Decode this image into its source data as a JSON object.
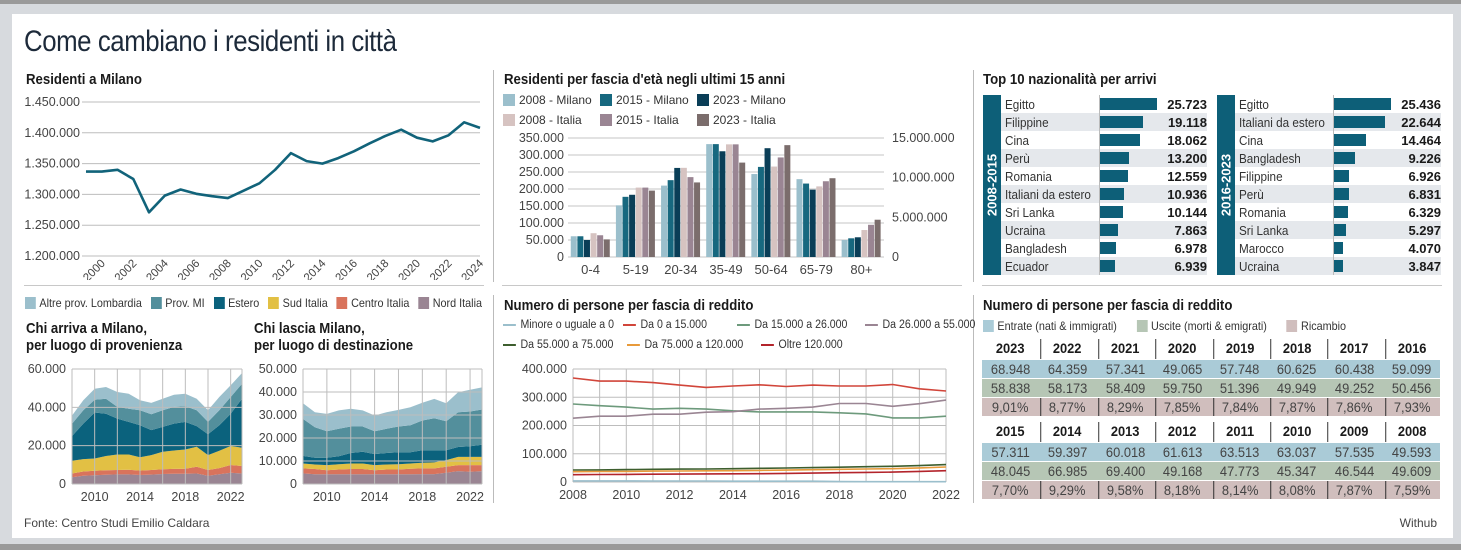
{
  "title": "Come cambiano i residenti in città",
  "source": "Fonte: Centro Studi Emilio Caldara",
  "credit": "Withub",
  "colors": {
    "teal": "#0d5f78",
    "milano2008": "#9bbfcc",
    "milano2015": "#17687f",
    "milano2023": "#0a3e57",
    "italia2008": "#d6c3c1",
    "italia2015": "#9a8593",
    "italia2023": "#7b6d6c",
    "altre_lombardia": "#9bbfcc",
    "prov_mi": "#538f9c",
    "estero": "#0b627d",
    "sud": "#e2c044",
    "centro": "#d9735c",
    "nord": "#9a8593"
  },
  "chart_data": [
    {
      "id": "residenti",
      "type": "line",
      "title": "Residenti a Milano",
      "xlabel": "",
      "ylabel": "",
      "x": [
        1999,
        2000,
        2001,
        2002,
        2003,
        2004,
        2005,
        2006,
        2007,
        2008,
        2009,
        2010,
        2011,
        2012,
        2013,
        2014,
        2015,
        2016,
        2017,
        2018,
        2019,
        2020,
        2021,
        2022,
        2023,
        2024
      ],
      "values": [
        1337000,
        1337000,
        1340000,
        1325000,
        1271000,
        1298000,
        1308000,
        1301000,
        1297000,
        1294000,
        1306000,
        1318000,
        1340000,
        1367000,
        1354000,
        1350000,
        1359000,
        1370000,
        1383000,
        1395000,
        1405000,
        1392000,
        1386000,
        1396000,
        1417000,
        1408000
      ],
      "xticks": [
        "2000",
        "2002",
        "2004",
        "2006",
        "2008",
        "2010",
        "2012",
        "2014",
        "2016",
        "2018",
        "2020",
        "2022",
        "2024"
      ],
      "yticks": [
        "1.200.000",
        "1.250.000",
        "1.300.000",
        "1.350.000",
        "1.400.000",
        "1.450.000"
      ],
      "ylim": [
        1200000,
        1450000
      ],
      "grid": true
    },
    {
      "id": "eta",
      "type": "bar",
      "title": "Residenti per fascia d'età negli ultimi 15 anni",
      "categories": [
        "0-4",
        "5-19",
        "20-34",
        "35-49",
        "50-64",
        "65-79",
        "80+"
      ],
      "series": [
        {
          "name": "2008 - Milano",
          "axis": "left",
          "color_key": "milano2008",
          "values": [
            61000,
            152000,
            210000,
            332000,
            244000,
            229000,
            50000
          ]
        },
        {
          "name": "2015 - Milano",
          "axis": "left",
          "color_key": "milano2015",
          "values": [
            61000,
            177000,
            226000,
            332000,
            265000,
            216000,
            55000
          ]
        },
        {
          "name": "2023 - Milano",
          "axis": "left",
          "color_key": "milano2023",
          "values": [
            50000,
            183000,
            262000,
            311000,
            320000,
            198000,
            58000
          ]
        },
        {
          "name": "2008 - Italia",
          "axis": "right",
          "color_key": "italia2008",
          "values": [
            3000000,
            8750000,
            11240000,
            14200000,
            11400000,
            8900000,
            3400000
          ]
        },
        {
          "name": "2015 - Italia",
          "axis": "right",
          "color_key": "italia2015",
          "values": [
            2740000,
            8750000,
            10070000,
            14200000,
            12550000,
            9550000,
            4060000
          ]
        },
        {
          "name": "2023 - Italia",
          "axis": "right",
          "color_key": "italia2023",
          "values": [
            2220000,
            8370000,
            9400000,
            11900000,
            14100000,
            9930000,
            4700000
          ]
        }
      ],
      "legend_order": [
        0,
        1,
        2,
        3,
        4,
        5
      ],
      "yticks_left": [
        "0",
        "50.000",
        "100.000",
        "150.000",
        "200.000",
        "250.000",
        "300.000",
        "350.000"
      ],
      "yticks_right": [
        "0",
        "5.000.000",
        "10.000.000",
        "15.000.000"
      ],
      "ylim_left": [
        0,
        350000
      ],
      "ylim_right": [
        0,
        15000000
      ],
      "grid": true
    },
    {
      "id": "arrivi",
      "type": "area",
      "title": "Chi arriva a Milano, per luogo di provenienza",
      "title_lines": [
        "Chi arriva a Milano,",
        "per luogo di provenienza"
      ],
      "x": [
        2008,
        2009,
        2010,
        2011,
        2012,
        2013,
        2014,
        2015,
        2016,
        2017,
        2018,
        2019,
        2020,
        2021,
        2022,
        2023
      ],
      "series": [
        {
          "name": "Nord Italia",
          "color_key": "nord",
          "values": [
            3500,
            4300,
            4600,
            4800,
            5000,
            5000,
            4700,
            4900,
            5200,
            5300,
            5300,
            5500,
            4300,
            5100,
            5900,
            5500
          ]
        },
        {
          "name": "Centro Italia",
          "color_key": "centro",
          "values": [
            2000,
            2200,
            2300,
            2400,
            2300,
            2400,
            2300,
            2400,
            2500,
            2600,
            2700,
            3500,
            3000,
            3200,
            4000,
            3900
          ]
        },
        {
          "name": "Sud Italia",
          "color_key": "sud",
          "values": [
            6600,
            6500,
            6400,
            7400,
            8100,
            8000,
            7000,
            7800,
            9100,
            9600,
            10000,
            10400,
            7800,
            9000,
            9900,
            9500
          ]
        },
        {
          "name": "Estero",
          "color_key": "estero",
          "values": [
            12900,
            18500,
            24000,
            22100,
            18700,
            17000,
            16700,
            13000,
            13000,
            14000,
            14400,
            10800,
            10900,
            13400,
            16900,
            25600
          ]
        },
        {
          "name": "Prov. MI",
          "color_key": "prov_mi",
          "values": [
            6400,
            7000,
            6700,
            7800,
            6100,
            6900,
            7800,
            8300,
            8700,
            8700,
            8200,
            8300,
            6400,
            7800,
            8700,
            7800
          ]
        },
        {
          "name": "Altre prov. Lombardia",
          "color_key": "altre_lombardia",
          "values": [
            4300,
            5200,
            5700,
            6100,
            7800,
            7800,
            5200,
            5900,
            6000,
            6400,
            6500,
            6000,
            6100,
            6900,
            6100,
            5600
          ]
        }
      ],
      "xticks": [
        "2010",
        "2014",
        "2018",
        "2022"
      ],
      "yticks": [
        "0",
        "20.000",
        "40.000",
        "60.000"
      ],
      "ylim": [
        0,
        60000
      ],
      "grid": true
    },
    {
      "id": "partenze",
      "type": "area",
      "title": "Chi lascia Milano, per luogo di destinazione",
      "title_lines": [
        "Chi lascia Milano,",
        "per luogo di destinazione"
      ],
      "x": [
        2008,
        2009,
        2010,
        2011,
        2012,
        2013,
        2014,
        2015,
        2016,
        2017,
        2018,
        2019,
        2020,
        2021,
        2022,
        2023
      ],
      "series": [
        {
          "name": "Nord Italia",
          "color_key": "nord",
          "values": [
            4600,
            4200,
            4200,
            4200,
            4200,
            4200,
            4200,
            4200,
            4200,
            4200,
            4300,
            4300,
            4900,
            5600,
            5300,
            5600
          ]
        },
        {
          "name": "Centro Italia",
          "color_key": "centro",
          "values": [
            2200,
            2300,
            1800,
            2100,
            2300,
            2300,
            1800,
            2100,
            2100,
            2400,
            2500,
            2500,
            2600,
            2600,
            2900,
            2600
          ]
        },
        {
          "name": "Sud Italia",
          "color_key": "sud",
          "values": [
            2100,
            2000,
            2200,
            2300,
            2400,
            2400,
            2200,
            2200,
            2300,
            2300,
            2400,
            2600,
            2900,
            3600,
            3600,
            3600
          ]
        },
        {
          "name": "Estero",
          "color_key": "estero",
          "values": [
            3300,
            2900,
            3200,
            3500,
            4600,
            5100,
            4800,
            5000,
            5200,
            4900,
            5500,
            5300,
            4300,
            4300,
            4600,
            5300
          ]
        },
        {
          "name": "Prov. MI",
          "color_key": "prov_mi",
          "values": [
            16100,
            13300,
            11500,
            11900,
            11500,
            11000,
            9900,
            10500,
            11200,
            11700,
            12900,
            13900,
            12600,
            15100,
            15100,
            15300
          ]
        },
        {
          "name": "Altre prov. Lombardia",
          "color_key": "altre_lombardia",
          "values": [
            6800,
            6500,
            7600,
            8000,
            7700,
            7000,
            6900,
            7200,
            7200,
            7900,
            7700,
            8400,
            7800,
            8700,
            9500,
            9600
          ]
        }
      ],
      "xticks": [
        "2010",
        "2014",
        "2018",
        "2022"
      ],
      "yticks": [
        "0",
        "10.000",
        "20.000",
        "30.000",
        "40.000",
        "50.000"
      ],
      "ylim": [
        0,
        50000
      ],
      "grid": true
    },
    {
      "id": "reddito",
      "type": "line",
      "title": "Numero di persone per fascia di reddito",
      "x": [
        2008,
        2009,
        2010,
        2011,
        2012,
        2013,
        2014,
        2015,
        2016,
        2017,
        2018,
        2019,
        2020,
        2021,
        2022
      ],
      "series": [
        {
          "name": "Minore o uguale a 0",
          "color": "#9bbfcc",
          "values": [
            4000,
            4000,
            4000,
            3500,
            3500,
            3500,
            3000,
            3000,
            3000,
            3000,
            1500,
            1000,
            1000,
            1000,
            1000
          ]
        },
        {
          "name": "Da 0 a 15.000",
          "color": "#d1453a",
          "values": [
            368000,
            357000,
            357000,
            352000,
            343000,
            335000,
            340000,
            344000,
            338000,
            343000,
            340000,
            340000,
            345000,
            330000,
            322000
          ]
        },
        {
          "name": "Da 15.000 a 26.000",
          "color": "#6d9a7c",
          "values": [
            276000,
            270000,
            265000,
            258000,
            261000,
            258000,
            252000,
            248000,
            248000,
            248000,
            245000,
            241000,
            227000,
            227000,
            233000
          ]
        },
        {
          "name": "Da 26.000 a 55.000",
          "color": "#9a8593",
          "values": [
            226000,
            233000,
            233000,
            240000,
            240000,
            247000,
            249000,
            258000,
            261000,
            265000,
            278000,
            278000,
            268000,
            277000,
            290000
          ]
        },
        {
          "name": "Da 55.000 a 75.000",
          "color": "#3d5e2e",
          "values": [
            42500,
            43000,
            44000,
            45000,
            45500,
            46000,
            47000,
            48500,
            49500,
            51000,
            52500,
            54000,
            55500,
            58000,
            61500
          ]
        },
        {
          "name": "Da 75.000 a 120.000",
          "color": "#e89a3a",
          "values": [
            36500,
            37000,
            37500,
            38500,
            39000,
            39500,
            40000,
            41000,
            42000,
            43500,
            45000,
            46000,
            47000,
            50000,
            53000
          ]
        },
        {
          "name": "Oltre 120.000",
          "color": "#b3242b",
          "values": [
            26000,
            26500,
            27000,
            27500,
            28000,
            28500,
            29000,
            29500,
            30500,
            31500,
            33000,
            34000,
            35000,
            37500,
            40000
          ]
        }
      ],
      "xticks": [
        "2008",
        "2010",
        "2012",
        "2014",
        "2016",
        "2018",
        "2020",
        "2022"
      ],
      "yticks": [
        "0",
        "100.000",
        "200.000",
        "300.000",
        "400.000"
      ],
      "ylim": [
        0,
        400000
      ],
      "grid": true
    },
    {
      "id": "top10",
      "type": "bar",
      "title": "Top 10 nazionalità per arrivi",
      "panels": [
        {
          "period": "2008-2015",
          "categories": [
            "Egitto",
            "Filippine",
            "Cina",
            "Perù",
            "Romania",
            "Italiani da estero",
            "Sri Lanka",
            "Ucraina",
            "Bangladesh",
            "Ecuador"
          ],
          "values": [
            25723,
            19118,
            18062,
            13200,
            12559,
            10936,
            10144,
            7863,
            6978,
            6939
          ],
          "labels": [
            "25.723",
            "19.118",
            "18.062",
            "13.200",
            "12.559",
            "10.936",
            "10.144",
            "7.863",
            "6.978",
            "6.939"
          ]
        },
        {
          "period": "2016-2023",
          "categories": [
            "Egitto",
            "Italiani da estero",
            "Cina",
            "Bangladesh",
            "Filippine",
            "Perù",
            "Romania",
            "Sri Lanka",
            "Marocco",
            "Ucraina"
          ],
          "values": [
            25436,
            22644,
            14464,
            9226,
            6926,
            6831,
            6329,
            5297,
            4070,
            3847
          ],
          "labels": [
            "25.436",
            "22.644",
            "14.464",
            "9.226",
            "6.926",
            "6.831",
            "6.329",
            "5.297",
            "4.070",
            "3.847"
          ]
        }
      ]
    },
    {
      "id": "ricambio",
      "type": "table",
      "title": "Numero di persone per fascia di reddito",
      "legend": [
        "Entrate (nati & immigrati)",
        "Uscite (morti & emigrati)",
        "Ricambio"
      ],
      "blocks": [
        {
          "years": [
            "2023",
            "2022",
            "2021",
            "2020",
            "2019",
            "2018",
            "2017",
            "2016"
          ],
          "entrate": [
            "68.948",
            "64.359",
            "57.341",
            "49.065",
            "57.748",
            "60.625",
            "60.438",
            "59.099"
          ],
          "uscite": [
            "58.838",
            "58.173",
            "58.409",
            "59.750",
            "51.396",
            "49.949",
            "49.252",
            "50.456"
          ],
          "ricambio": [
            "9,01%",
            "8,77%",
            "8,29%",
            "7,85%",
            "7,84%",
            "7,87%",
            "7,86%",
            "7,93%"
          ]
        },
        {
          "years": [
            "2015",
            "2014",
            "2013",
            "2012",
            "2011",
            "2010",
            "2009",
            "2008"
          ],
          "entrate": [
            "57.311",
            "59.397",
            "60.018",
            "61.613",
            "63.513",
            "63.037",
            "57.535",
            "49.593"
          ],
          "uscite": [
            "48.045",
            "66.985",
            "69.400",
            "49.168",
            "47.773",
            "45.347",
            "46.544",
            "49.609"
          ],
          "ricambio": [
            "7,70%",
            "9,29%",
            "9,58%",
            "8,18%",
            "8,14%",
            "8,08%",
            "7,87%",
            "7,59%"
          ]
        }
      ]
    }
  ],
  "area_legend": [
    "Altre prov. Lombardia",
    "Prov. MI",
    "Estero",
    "Sud Italia",
    "Centro Italia",
    "Nord Italia"
  ],
  "area_legend_keys": [
    "altre_lombardia",
    "prov_mi",
    "estero",
    "sud",
    "centro",
    "nord"
  ]
}
